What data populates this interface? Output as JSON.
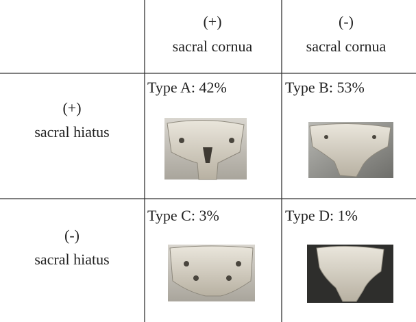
{
  "header": {
    "columns": [
      {
        "sign": "(+)",
        "label": "sacral cornua"
      },
      {
        "sign": "(-)",
        "label": "sacral cornua"
      }
    ]
  },
  "rows": [
    {
      "sign": "(+)",
      "label": "sacral hiatus",
      "cells": [
        "Type A: 42%",
        "Type B: 53%"
      ]
    },
    {
      "sign": "(-)",
      "label": "sacral hiatus",
      "cells": [
        "Type C: 3%",
        "Type D: 1%"
      ]
    }
  ]
}
